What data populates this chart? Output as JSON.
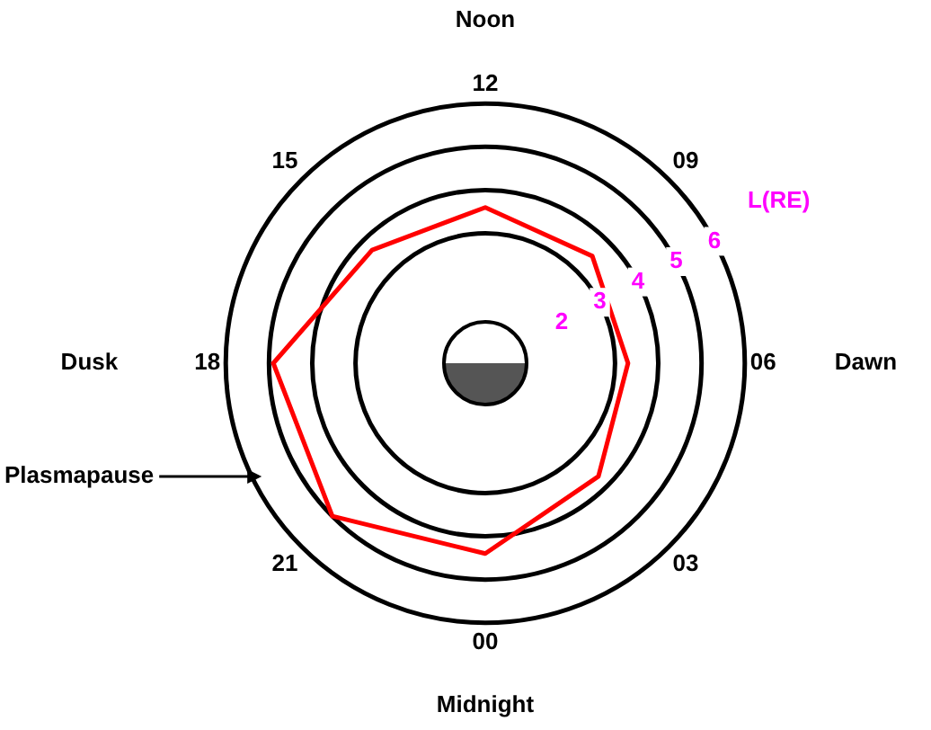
{
  "chart_data": {
    "type": "radar",
    "categories": [
      "12",
      "09",
      "06",
      "03",
      "00",
      "21",
      "18",
      "15"
    ],
    "series": [
      {
        "color": "#ff0000",
        "values": [
          3.6,
          3.5,
          3.3,
          3.7,
          4.4,
          5.0,
          4.9,
          3.7
        ]
      }
    ],
    "ylim": [
      0,
      6
    ],
    "yticks": [
      2,
      3,
      4,
      5,
      6
    ],
    "ylabel": "L(RE)",
    "grid": true,
    "legend": false,
    "marker": "none",
    "line_style": "solid",
    "annotations": [
      "Noon",
      "Dawn",
      "Midnight",
      "Dusk",
      "Plasmapause"
    ]
  }
}
